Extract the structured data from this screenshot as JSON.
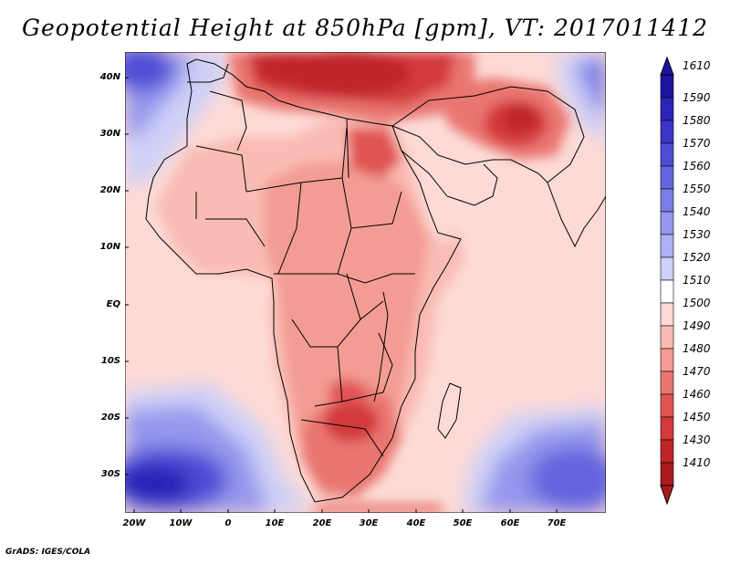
{
  "title": "Geopotential Height at 850hPa [gpm], VT: 2017011412",
  "credit": "GrADS: IGES/COLA",
  "lat_ticks": [
    "40N",
    "30N",
    "20N",
    "10N",
    "EQ",
    "10S",
    "20S",
    "30S"
  ],
  "lon_ticks": [
    "20W",
    "10W",
    "0",
    "10E",
    "20E",
    "30E",
    "40E",
    "50E",
    "60E",
    "70E"
  ],
  "colorbar": {
    "labels": [
      "1610",
      "1590",
      "1580",
      "1570",
      "1560",
      "1550",
      "1540",
      "1530",
      "1520",
      "1510",
      "1500",
      "1490",
      "1480",
      "1470",
      "1460",
      "1450",
      "1430",
      "1410"
    ],
    "colors": [
      "#1e14a0",
      "#2c24b8",
      "#3b35c8",
      "#4f4dd6",
      "#6565de",
      "#7b7de6",
      "#9596ec",
      "#aeb1f2",
      "#cdd0f8",
      "#ffffff",
      "#fddad6",
      "#f9bcb4",
      "#f39c93",
      "#e97670",
      "#df5553",
      "#d33a3c",
      "#bf2629",
      "#a81a1d"
    ]
  },
  "map_extent": {
    "lon_min": -22,
    "lon_max": 80,
    "lat_min": -37,
    "lat_max": 45
  },
  "field_description_colors": {
    "ocean_base": "#fddad6",
    "land_base": "#f4a199",
    "high_center": "#3b35c8",
    "low_center": "#b81e22"
  }
}
